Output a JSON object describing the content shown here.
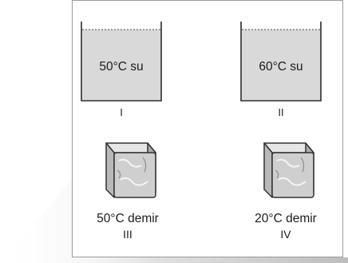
{
  "containers": [
    {
      "content": "50°C su",
      "numeral": "I"
    },
    {
      "content": "60°C su",
      "numeral": "II"
    }
  ],
  "blocks": [
    {
      "content": "50°C demir",
      "numeral": "III"
    },
    {
      "content": "20°C demir",
      "numeral": "IV"
    }
  ]
}
